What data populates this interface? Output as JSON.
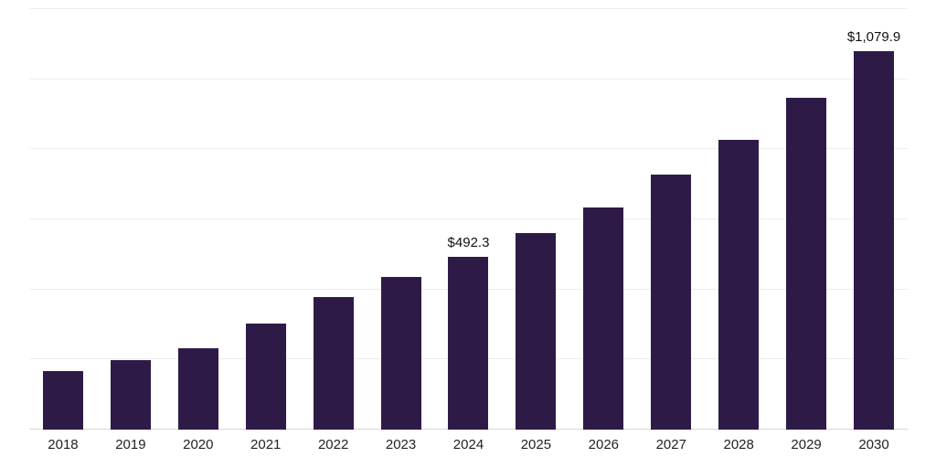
{
  "chart_data": {
    "type": "bar",
    "title": "",
    "xlabel": "",
    "ylabel": "",
    "categories": [
      "2018",
      "2019",
      "2020",
      "2021",
      "2022",
      "2023",
      "2024",
      "2025",
      "2026",
      "2027",
      "2028",
      "2029",
      "2030"
    ],
    "values": [
      166,
      197,
      233,
      302,
      379,
      435,
      492.3,
      560,
      633,
      728,
      828,
      947,
      1079.9
    ],
    "ylim": [
      0,
      1200
    ],
    "grid_step": 200,
    "grid": true,
    "legend_position": "none",
    "bar_color": "#2e1a47",
    "gridline_color": "#ededed",
    "axis_line_color": "#d6d6d6",
    "annotations": [
      {
        "category": "2024",
        "text": "$492.3"
      },
      {
        "category": "2030",
        "text": "$1,079.9"
      }
    ]
  }
}
